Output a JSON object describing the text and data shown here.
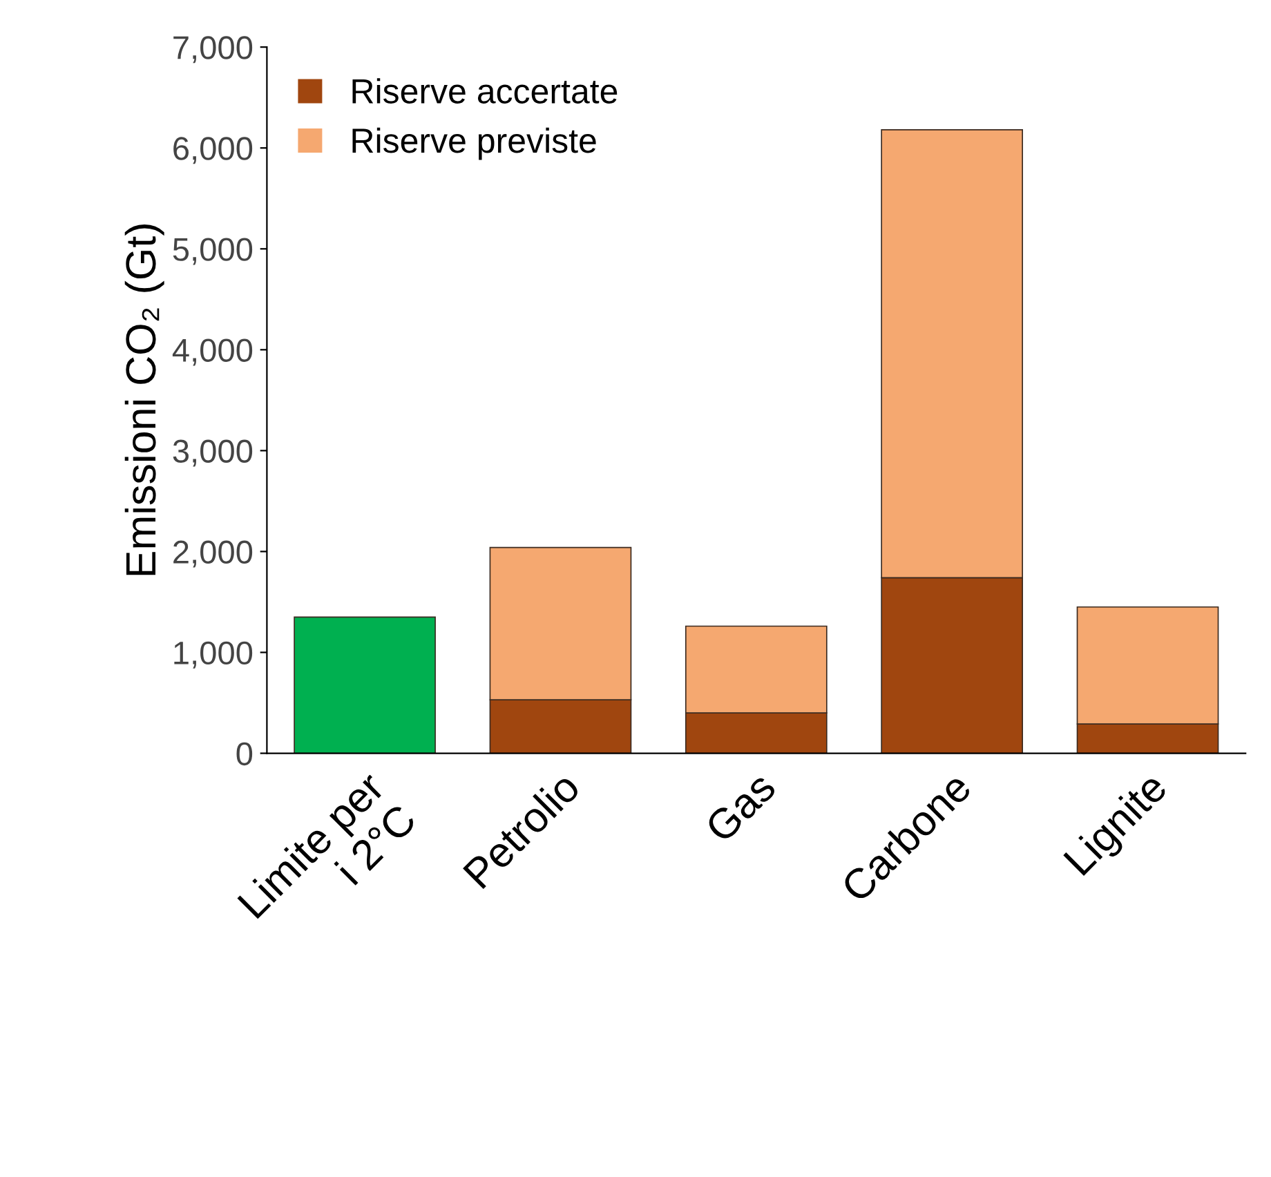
{
  "chart_data": {
    "type": "bar",
    "stacked": true,
    "ylabel": "Emissioni CO₂ (Gt)",
    "categories": [
      "Limite per\ni 2°C",
      "Petrolio",
      "Gas",
      "Carbone",
      "Lignite"
    ],
    "series": [
      {
        "name": "Riserve accertate",
        "color": "#a0460f",
        "colors": [
          "#00b050",
          "#a0460f",
          "#a0460f",
          "#a0460f",
          "#a0460f"
        ],
        "values": [
          1350,
          530,
          400,
          1740,
          290
        ]
      },
      {
        "name": "Riserve previste",
        "color": "#f5a870",
        "values": [
          null,
          1510,
          860,
          4440,
          1160
        ]
      }
    ],
    "ylim": [
      0,
      7000
    ],
    "yticks": [
      {
        "value": 0,
        "label": "0"
      },
      {
        "value": 1000,
        "label": "1,000"
      },
      {
        "value": 2000,
        "label": "2,000"
      },
      {
        "value": 3000,
        "label": "3,000"
      },
      {
        "value": 4000,
        "label": "4,000"
      },
      {
        "value": 5000,
        "label": "5,000"
      },
      {
        "value": 6000,
        "label": "6,000"
      },
      {
        "value": 7000,
        "label": "7,000"
      }
    ],
    "grid": false,
    "legend": "top left"
  }
}
